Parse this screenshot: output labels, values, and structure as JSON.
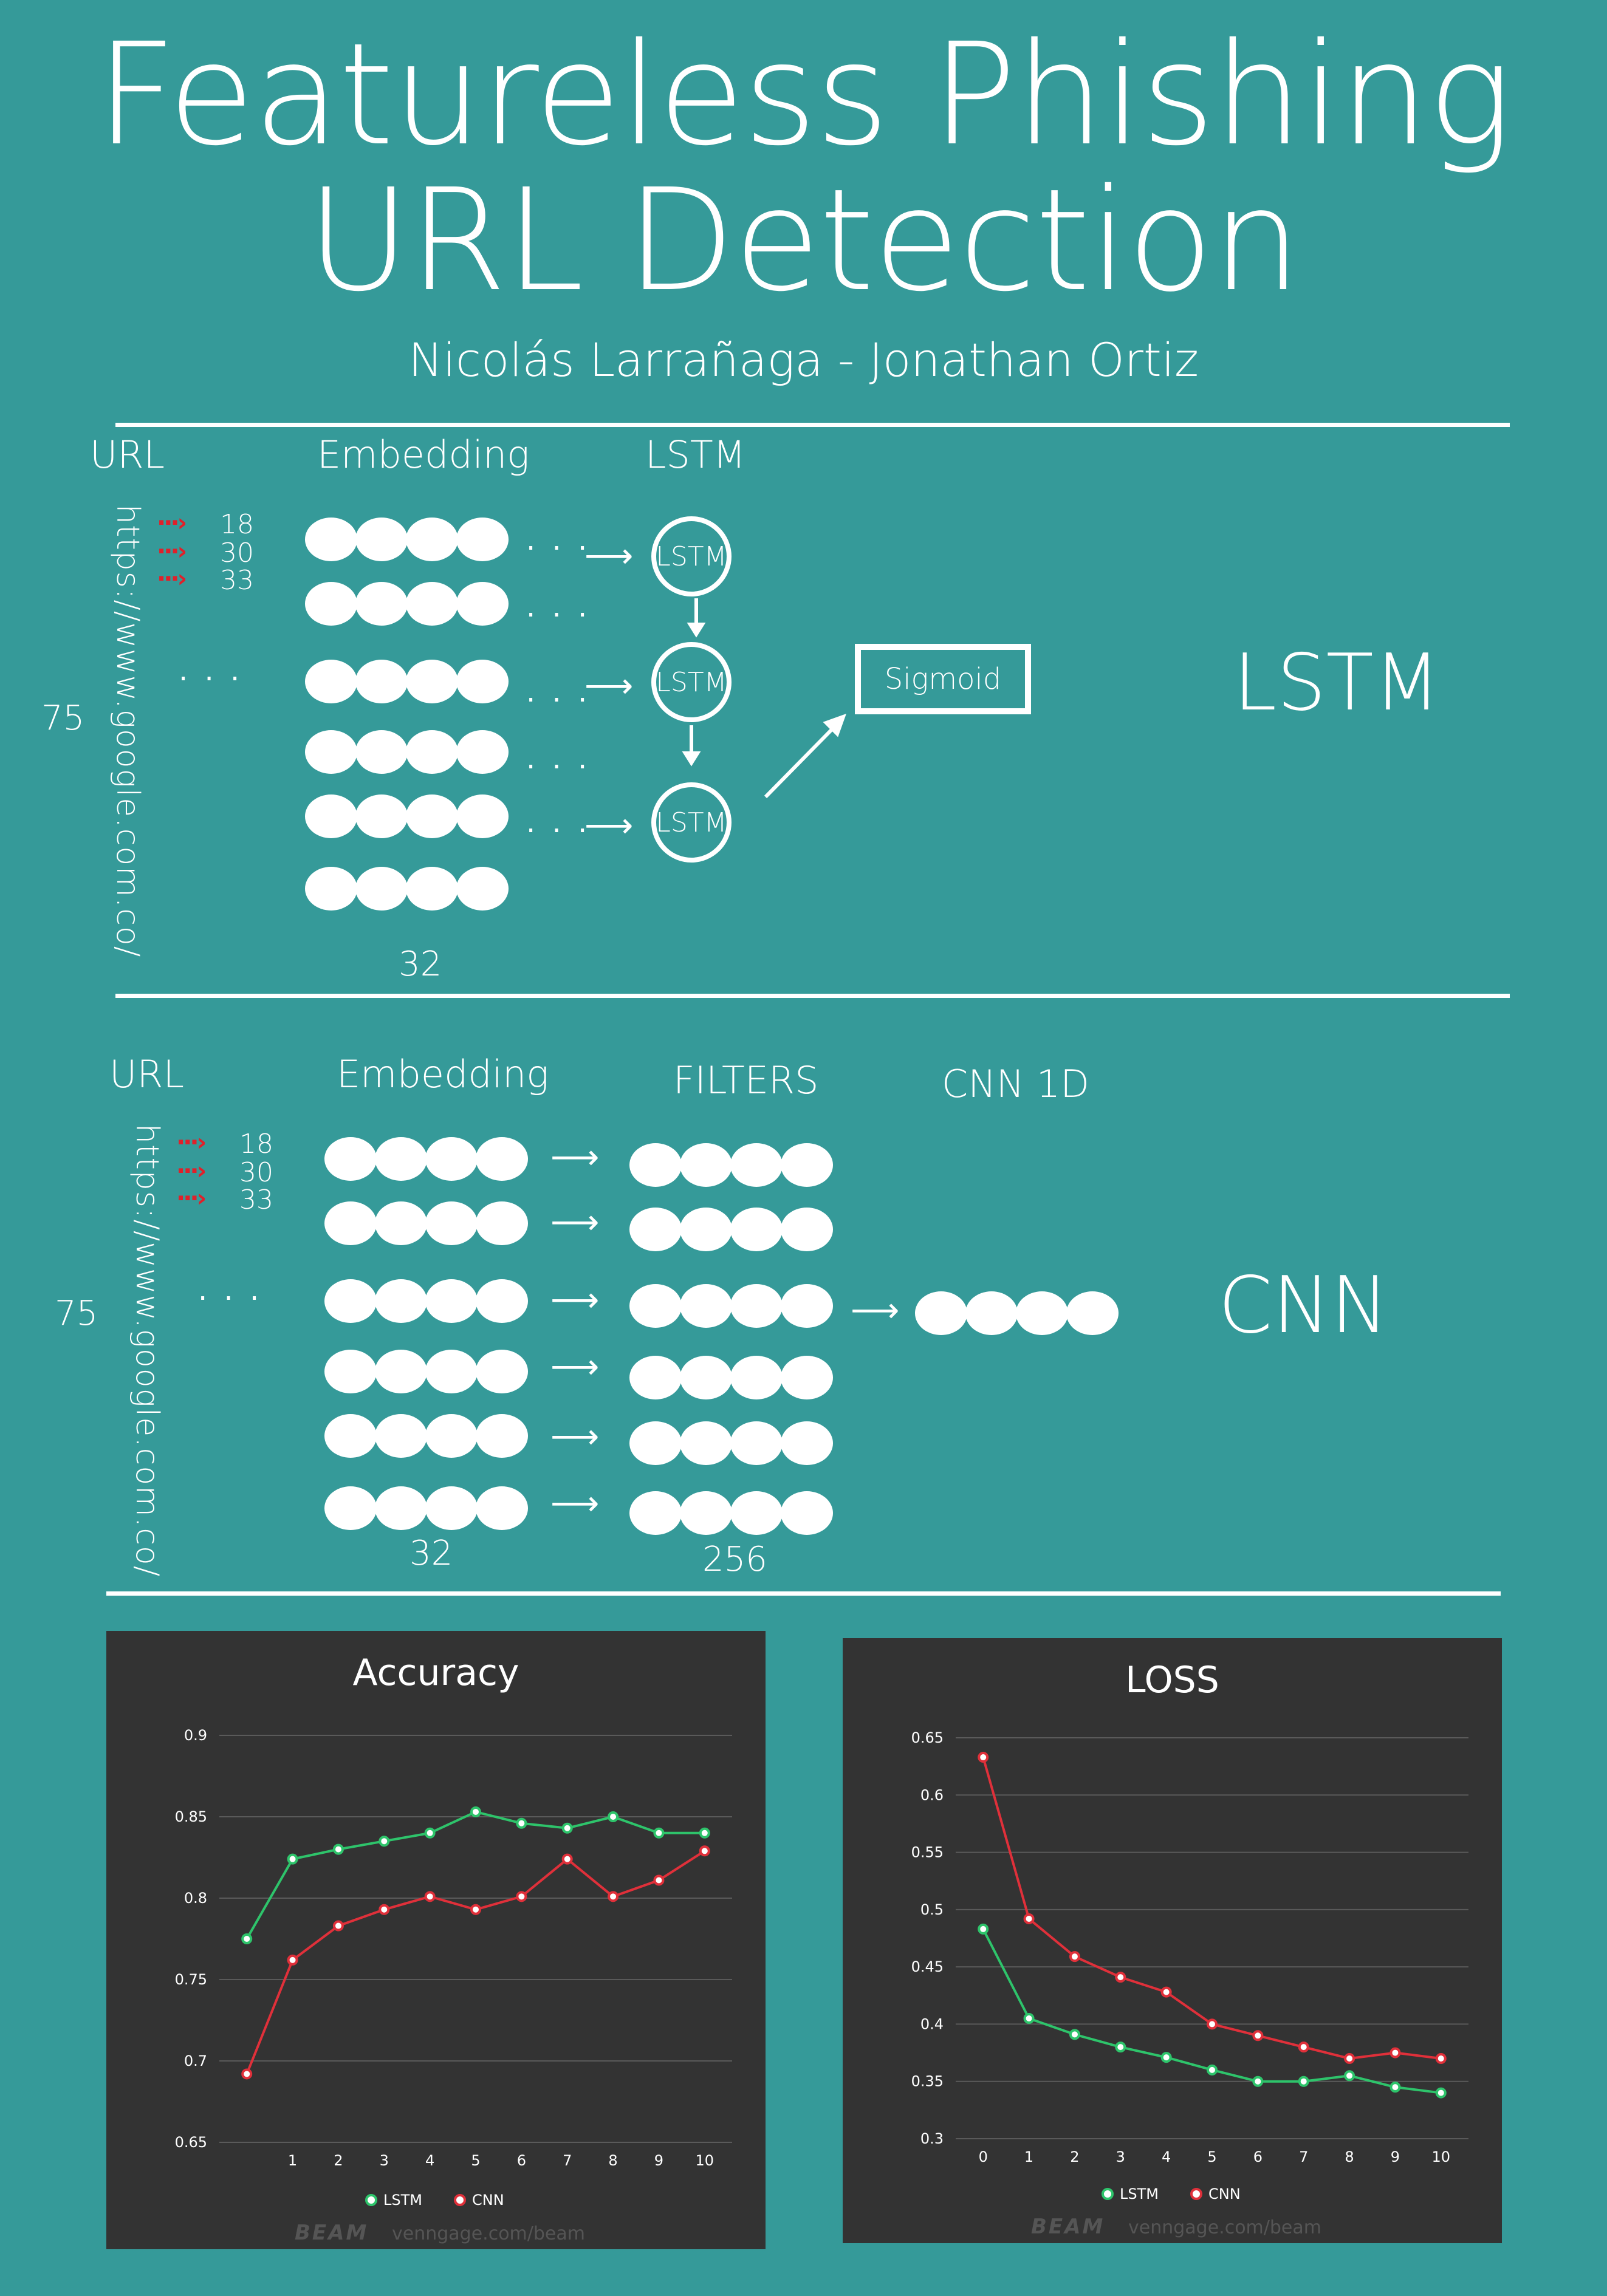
{
  "title": {
    "line1": "Featureless Phishing",
    "line2": "URL Detection"
  },
  "authors": "Nicolás Larrañaga - Jonathan Ortiz",
  "lstm_section": {
    "col_url": "URL",
    "col_embedding": "Embedding",
    "col_lstm": "LSTM",
    "url_text": "https://www.google.com.co/",
    "char_codes": [
      "18",
      "30",
      "33"
    ],
    "ellipsis": "· · ·",
    "seq_length": "75",
    "embed_dim": "32",
    "cell_label": "LSTM",
    "output_label": "Sigmoid",
    "model_name": "LSTM"
  },
  "cnn_section": {
    "col_url": "URL",
    "col_embedding": "Embedding",
    "col_filters": "FILTERS",
    "col_cnn": "CNN 1D",
    "url_text": "https://www.google.com.co/",
    "char_codes": [
      "18",
      "30",
      "33"
    ],
    "ellipsis": "· · ·",
    "seq_length": "75",
    "embed_dim": "32",
    "filters_dim": "256",
    "model_name": "CNN"
  },
  "colors": {
    "background": "#359a99",
    "panel": "#333333",
    "lstm": "#2ec46b",
    "cnn": "#e0303a"
  },
  "accuracy_chart": {
    "type": "line",
    "title": "Accuracy",
    "x_ticks": [
      "1",
      "2",
      "3",
      "4",
      "5",
      "6",
      "7",
      "8",
      "9",
      "10"
    ],
    "x_values": [
      0,
      1,
      2,
      3,
      4,
      5,
      6,
      7,
      8,
      9,
      10
    ],
    "y_ticks": [
      "0.65",
      "0.7",
      "0.75",
      "0.8",
      "0.85",
      "0.9"
    ],
    "ylim": [
      0.65,
      0.9
    ],
    "xlim": [
      -0.6,
      10.6
    ],
    "series": [
      {
        "name": "LSTM",
        "color": "#2ec46b",
        "values": [
          0.775,
          0.824,
          0.83,
          0.835,
          0.84,
          0.853,
          0.846,
          0.843,
          0.85,
          0.84,
          0.84
        ]
      },
      {
        "name": "CNN",
        "color": "#e0303a",
        "values": [
          0.692,
          0.762,
          0.783,
          0.793,
          0.801,
          0.793,
          0.801,
          0.824,
          0.801,
          0.811,
          0.829
        ]
      }
    ],
    "legend": [
      "LSTM",
      "CNN"
    ],
    "watermark_brand": "BEAM",
    "watermark_url": "venngage.com/beam"
  },
  "loss_chart": {
    "type": "line",
    "title": "LOSS",
    "x_ticks": [
      "0",
      "1",
      "2",
      "3",
      "4",
      "5",
      "6",
      "7",
      "8",
      "9",
      "10"
    ],
    "x_values": [
      0,
      1,
      2,
      3,
      4,
      5,
      6,
      7,
      8,
      9,
      10
    ],
    "y_ticks": [
      "0.3",
      "0.35",
      "0.4",
      "0.45",
      "0.5",
      "0.55",
      "0.6",
      "0.65"
    ],
    "ylim": [
      0.3,
      0.65
    ],
    "xlim": [
      -0.6,
      10.6
    ],
    "series": [
      {
        "name": "LSTM",
        "color": "#2ec46b",
        "values": [
          0.483,
          0.405,
          0.391,
          0.38,
          0.371,
          0.36,
          0.35,
          0.35,
          0.355,
          0.345,
          0.34
        ]
      },
      {
        "name": "CNN",
        "color": "#e0303a",
        "values": [
          0.633,
          0.492,
          0.459,
          0.441,
          0.428,
          0.4,
          0.39,
          0.38,
          0.37,
          0.375,
          0.37
        ]
      }
    ],
    "legend": [
      "LSTM",
      "CNN"
    ],
    "watermark_brand": "BEAM",
    "watermark_url": "venngage.com/beam"
  }
}
